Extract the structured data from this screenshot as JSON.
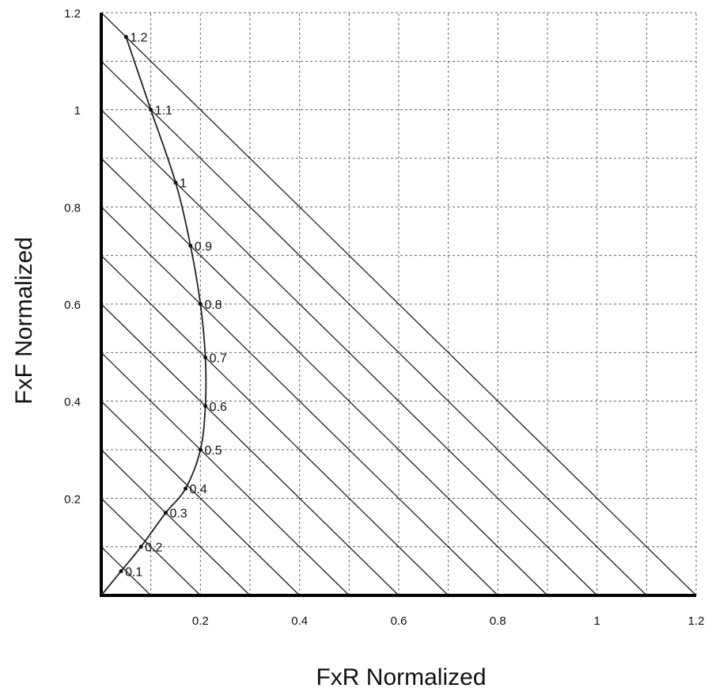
{
  "chart_data": {
    "type": "line",
    "xlabel": "FxR Normalized",
    "ylabel": "FxF Normalized",
    "xlim": [
      0,
      1.2
    ],
    "ylim": [
      0,
      1.2
    ],
    "grid": true,
    "x_ticks": [
      "0.2",
      "0.4",
      "0.6",
      "0.8",
      "1",
      "1.2"
    ],
    "y_ticks": [
      "0.2",
      "0.4",
      "0.6",
      "0.8",
      "1",
      "1.2"
    ],
    "constant_sum_lines": [
      0.1,
      0.2,
      0.3,
      0.4,
      0.5,
      0.6,
      0.7,
      0.8,
      0.9,
      1.0,
      1.1,
      1.2
    ],
    "series": [
      {
        "points": [
          {
            "x": 0.0,
            "y": 0.0,
            "label": ""
          },
          {
            "x": 0.04,
            "y": 0.05,
            "label": "0.1"
          },
          {
            "x": 0.08,
            "y": 0.1,
            "label": "0.2"
          },
          {
            "x": 0.13,
            "y": 0.17,
            "label": "0.3"
          },
          {
            "x": 0.17,
            "y": 0.22,
            "label": "0.4"
          },
          {
            "x": 0.2,
            "y": 0.3,
            "label": "0.5"
          },
          {
            "x": 0.21,
            "y": 0.39,
            "label": "0.6"
          },
          {
            "x": 0.21,
            "y": 0.49,
            "label": "0.7"
          },
          {
            "x": 0.2,
            "y": 0.6,
            "label": "0.8"
          },
          {
            "x": 0.18,
            "y": 0.72,
            "label": "0.9"
          },
          {
            "x": 0.15,
            "y": 0.85,
            "label": "1"
          },
          {
            "x": 0.1,
            "y": 1.0,
            "label": "1.1"
          },
          {
            "x": 0.05,
            "y": 1.15,
            "label": "1.2"
          }
        ]
      }
    ]
  }
}
